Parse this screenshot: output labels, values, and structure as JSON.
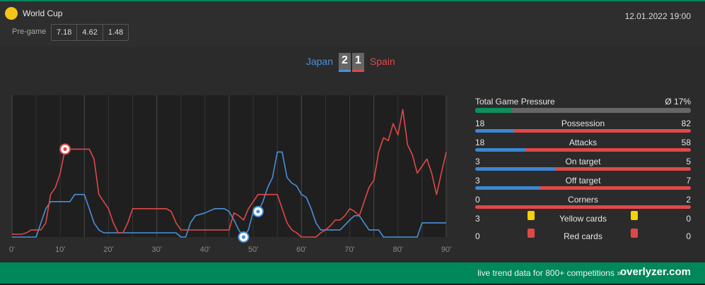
{
  "header": {
    "competition": "World Cup",
    "datetime": "12.01.2022 19:00",
    "pregame_label": "Pre-game",
    "odds": [
      "7.18",
      "4.62",
      "1.48"
    ]
  },
  "match": {
    "home": "Japan",
    "away": "Spain",
    "home_score": "2",
    "away_score": "1"
  },
  "colors": {
    "home": "#4a90d9",
    "away": "#e04848",
    "accent": "#00875a",
    "card_yellow": "#f5d10a",
    "card_red": "#e04848"
  },
  "stats": {
    "pressure_label": "Total Game Pressure",
    "pressure_value": "Ø 17%",
    "pressure_fraction": 0.17,
    "rows": [
      {
        "label": "Possession",
        "home": "18",
        "away": "82"
      },
      {
        "label": "Attacks",
        "home": "18",
        "away": "58"
      },
      {
        "label": "On target",
        "home": "3",
        "away": "5"
      },
      {
        "label": "Off target",
        "home": "3",
        "away": "7"
      },
      {
        "label": "Corners",
        "home": "0",
        "away": "2"
      }
    ],
    "yellow": {
      "label": "Yellow cards",
      "home": "3",
      "away": "0"
    },
    "red": {
      "label": "Red cards",
      "home": "0",
      "away": "0"
    }
  },
  "chart_data": {
    "type": "area",
    "x_ticks": [
      "0'",
      "10'",
      "20'",
      "30'",
      "40'",
      "50'",
      "60'",
      "70'",
      "80'",
      "90'"
    ],
    "xlim": [
      0,
      90
    ],
    "ylim": [
      0,
      100
    ],
    "grid": "vertical",
    "series": [
      {
        "name": "Japan",
        "color": "#4a90d9",
        "points": [
          [
            0,
            0
          ],
          [
            5,
            0
          ],
          [
            6,
            10
          ],
          [
            7,
            20
          ],
          [
            8,
            25
          ],
          [
            9,
            25
          ],
          [
            12,
            25
          ],
          [
            13,
            30
          ],
          [
            15,
            30
          ],
          [
            16,
            20
          ],
          [
            17,
            10
          ],
          [
            18,
            5
          ],
          [
            19,
            3
          ],
          [
            20,
            3
          ],
          [
            24,
            3
          ],
          [
            25,
            3
          ],
          [
            33,
            3
          ],
          [
            34,
            3
          ],
          [
            35,
            0
          ],
          [
            36,
            0
          ],
          [
            37,
            10
          ],
          [
            38,
            15
          ],
          [
            40,
            17
          ],
          [
            42,
            20
          ],
          [
            44,
            20
          ],
          [
            45,
            18
          ],
          [
            46,
            12
          ],
          [
            47,
            5
          ],
          [
            48,
            0
          ],
          [
            49,
            5
          ],
          [
            50,
            18
          ],
          [
            51,
            18
          ],
          [
            52,
            25
          ],
          [
            53,
            35
          ],
          [
            54,
            42
          ],
          [
            55,
            60
          ],
          [
            56,
            60
          ],
          [
            57,
            42
          ],
          [
            58,
            38
          ],
          [
            59,
            36
          ],
          [
            60,
            30
          ],
          [
            61,
            28
          ],
          [
            62,
            20
          ],
          [
            63,
            10
          ],
          [
            64,
            5
          ],
          [
            67,
            5
          ],
          [
            68,
            5
          ],
          [
            70,
            12
          ],
          [
            71,
            15
          ],
          [
            72,
            15
          ],
          [
            73,
            10
          ],
          [
            74,
            5
          ],
          [
            76,
            5
          ],
          [
            77,
            0
          ],
          [
            80,
            0
          ],
          [
            84,
            0
          ],
          [
            85,
            10
          ],
          [
            86,
            10
          ],
          [
            90,
            10
          ]
        ]
      },
      {
        "name": "Spain",
        "color": "#e04848",
        "points": [
          [
            0,
            2
          ],
          [
            2,
            2
          ],
          [
            3,
            3
          ],
          [
            4,
            5
          ],
          [
            6,
            5
          ],
          [
            7,
            10
          ],
          [
            8,
            30
          ],
          [
            9,
            35
          ],
          [
            10,
            45
          ],
          [
            11,
            62
          ],
          [
            12,
            62
          ],
          [
            16,
            62
          ],
          [
            17,
            55
          ],
          [
            18,
            30
          ],
          [
            19,
            25
          ],
          [
            20,
            20
          ],
          [
            21,
            10
          ],
          [
            22,
            3
          ],
          [
            23,
            3
          ],
          [
            24,
            10
          ],
          [
            25,
            20
          ],
          [
            26,
            20
          ],
          [
            32,
            20
          ],
          [
            33,
            18
          ],
          [
            34,
            10
          ],
          [
            35,
            5
          ],
          [
            36,
            5
          ],
          [
            40,
            5
          ],
          [
            44,
            5
          ],
          [
            45,
            5
          ],
          [
            46,
            17
          ],
          [
            47,
            15
          ],
          [
            48,
            12
          ],
          [
            49,
            20
          ],
          [
            50,
            25
          ],
          [
            51,
            30
          ],
          [
            52,
            30
          ],
          [
            55,
            30
          ],
          [
            56,
            20
          ],
          [
            57,
            10
          ],
          [
            58,
            5
          ],
          [
            59,
            3
          ],
          [
            60,
            0
          ],
          [
            63,
            0
          ],
          [
            64,
            3
          ],
          [
            65,
            5
          ],
          [
            66,
            8
          ],
          [
            67,
            12
          ],
          [
            68,
            12
          ],
          [
            69,
            15
          ],
          [
            70,
            20
          ],
          [
            71,
            18
          ],
          [
            72,
            15
          ],
          [
            73,
            25
          ],
          [
            74,
            35
          ],
          [
            75,
            40
          ],
          [
            76,
            60
          ],
          [
            77,
            70
          ],
          [
            78,
            68
          ],
          [
            79,
            80
          ],
          [
            80,
            72
          ],
          [
            81,
            90
          ],
          [
            82,
            65
          ],
          [
            83,
            58
          ],
          [
            84,
            45
          ],
          [
            85,
            50
          ],
          [
            86,
            55
          ],
          [
            87,
            45
          ],
          [
            88,
            30
          ],
          [
            89,
            45
          ],
          [
            90,
            60
          ]
        ]
      }
    ],
    "events": [
      {
        "type": "goal",
        "team": "Spain",
        "minute": 11
      },
      {
        "type": "goal",
        "team": "Japan",
        "minute": 51
      },
      {
        "type": "goal",
        "team": "Japan",
        "minute": 48
      }
    ]
  },
  "footer": {
    "text": "live trend data for 800+ competitions »",
    "brand": "overlyzer.com"
  }
}
